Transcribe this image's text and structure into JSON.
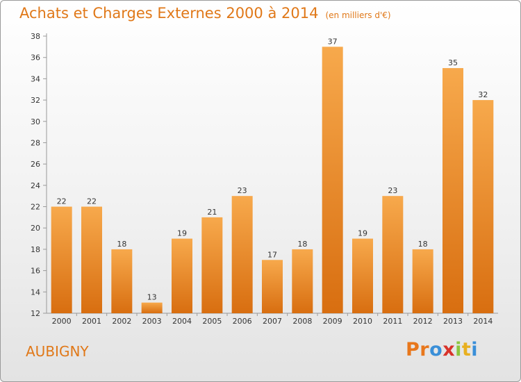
{
  "header": {
    "title": "Achats et Charges Externes 2000 à 2014",
    "subtitle": "(en milliers d'€)"
  },
  "footer": {
    "commune": "AUBIGNY",
    "logo_text": "Proxiti"
  },
  "colors": {
    "accent": "#e07818",
    "bar_top": "#f7a94c",
    "bar_bottom": "#d86e10",
    "logo": [
      "#e8771c",
      "#e8771c",
      "#3a8fd8",
      "#d8332a",
      "#8cc63e",
      "#e8b020",
      "#3a8fd8"
    ]
  },
  "chart_data": {
    "type": "bar",
    "title": "Achats et Charges Externes 2000 à 2014",
    "subtitle": "(en milliers d'€)",
    "categories": [
      "2000",
      "2001",
      "2002",
      "2003",
      "2004",
      "2005",
      "2006",
      "2007",
      "2008",
      "2009",
      "2010",
      "2011",
      "2012",
      "2013",
      "2014"
    ],
    "values": [
      22,
      22,
      18,
      13,
      19,
      21,
      23,
      17,
      18,
      37,
      19,
      23,
      18,
      35,
      32
    ],
    "ylim": [
      12,
      38
    ],
    "yticks": [
      12,
      14,
      16,
      18,
      20,
      22,
      24,
      26,
      28,
      30,
      32,
      34,
      36,
      38
    ],
    "grid": false,
    "legend": "none"
  }
}
